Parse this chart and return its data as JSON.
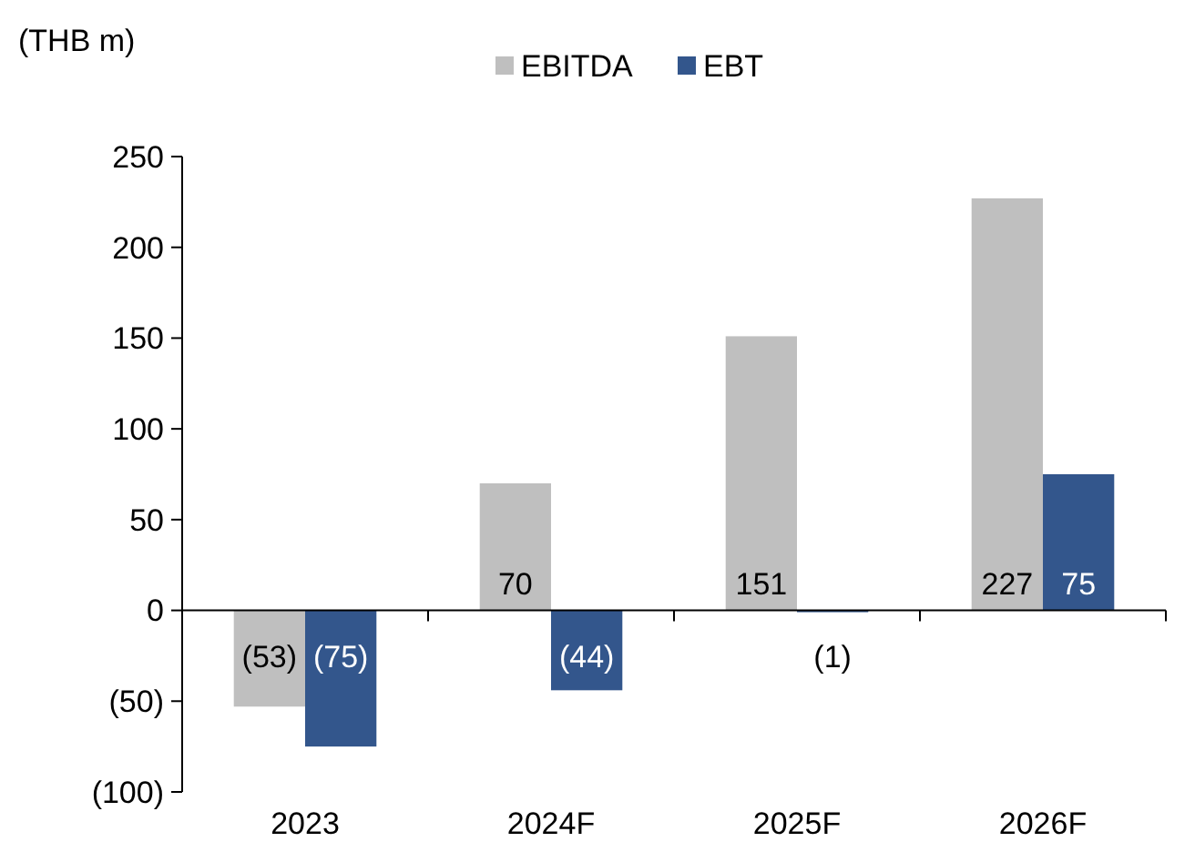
{
  "chart_data": {
    "type": "bar",
    "ylabel": "(THB m)",
    "categories": [
      "2023",
      "2024F",
      "2025F",
      "2026F"
    ],
    "series": [
      {
        "name": "EBITDA",
        "color": "#bfbfbf",
        "values": [
          -53,
          70,
          151,
          227
        ],
        "value_labels": [
          "(53)",
          "70",
          "151",
          "227"
        ]
      },
      {
        "name": "EBT",
        "color": "#33568c",
        "values": [
          -75,
          -44,
          -1,
          75
        ],
        "value_labels": [
          "(75)",
          "(44)",
          "(1)",
          "75"
        ]
      }
    ],
    "ylim": [
      -100,
      250
    ],
    "yticks": [
      {
        "value": -100,
        "label": "(100)"
      },
      {
        "value": -50,
        "label": "(50)"
      },
      0,
      50,
      100,
      150,
      200,
      250
    ],
    "legend": "top"
  }
}
